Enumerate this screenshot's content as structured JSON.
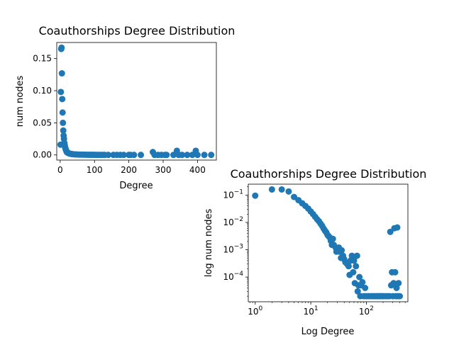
{
  "chart_data": [
    {
      "type": "scatter",
      "title": "Coauthorships Degree Distribution",
      "xlabel": "Degree",
      "ylabel": "num nodes",
      "xlim": [
        -10,
        455
      ],
      "ylim": [
        -0.008,
        0.175
      ],
      "xscale": "linear",
      "yscale": "linear",
      "xticks": [
        0,
        100,
        200,
        300,
        400
      ],
      "xtick_labels": [
        "0",
        "100",
        "200",
        "300",
        "400"
      ],
      "yticks": [
        0.0,
        0.05,
        0.1,
        0.15
      ],
      "ytick_labels": [
        "0.00",
        "0.05",
        "0.10",
        "0.15"
      ],
      "color": "#1f77b4",
      "series": [
        {
          "x": [
            1,
            2,
            3,
            4,
            5,
            6,
            7,
            8,
            9,
            10,
            11,
            12,
            13,
            14,
            15,
            16,
            17,
            18,
            19,
            20,
            22,
            24,
            26,
            28,
            30,
            33,
            36,
            40,
            45,
            50,
            55,
            60,
            65,
            70,
            75,
            80,
            85,
            90,
            95,
            100,
            105,
            110,
            115,
            120,
            125,
            130,
            140,
            155,
            165,
            175,
            185,
            200,
            205,
            215,
            235,
            270,
            275,
            285,
            295,
            305,
            310,
            330,
            340,
            345,
            355,
            370,
            385,
            395,
            400,
            420,
            440
          ],
          "y": [
            0.016,
            0.098,
            0.165,
            0.167,
            0.127,
            0.087,
            0.066,
            0.05,
            0.038,
            0.03,
            0.025,
            0.019,
            0.016,
            0.013,
            0.011,
            0.009,
            0.0075,
            0.006,
            0.005,
            0.004,
            0.0035,
            0.003,
            0.0025,
            0.002,
            0.0018,
            0.0015,
            0.0012,
            0.001,
            0.0008,
            0.0007,
            0.0006,
            0.0005,
            0.0005,
            0.0004,
            0.0004,
            0.0003,
            0.0003,
            0.0002,
            0.0002,
            0.0002,
            0.0001,
            0.0001,
            0.0001,
            0.0001,
            0.0001,
            0.0001,
            0.0001,
            0.0001,
            0.0001,
            0.0001,
            0.0001,
            0.0001,
            0.0001,
            0.0001,
            0.0001,
            0.0045,
            0.0001,
            0.0001,
            0.0001,
            0.0001,
            0.0001,
            0.0001,
            0.0065,
            0.0001,
            0.0001,
            0.0001,
            0.0001,
            0.0065,
            0.0001,
            0.0001,
            0.0001
          ]
        }
      ]
    },
    {
      "type": "scatter",
      "title": "Coauthorships Degree Distribution",
      "xlabel": "Log Degree",
      "ylabel": "log num nodes",
      "xscale": "log",
      "yscale": "log",
      "xlim": [
        0.75,
        560
      ],
      "ylim": [
        1.25e-05,
        0.25
      ],
      "xticks": [
        1,
        10,
        100
      ],
      "xtick_labels": [
        "10^0",
        "10^1",
        "10^2"
      ],
      "yticks": [
        0.0001,
        0.001,
        0.01,
        0.1
      ],
      "ytick_labels": [
        "10^-4",
        "10^-3",
        "10^-2",
        "10^-1"
      ],
      "color": "#1f77b4",
      "series": [
        {
          "x": [
            1,
            2,
            3,
            4,
            5,
            6,
            7,
            8,
            9,
            10,
            11,
            12,
            13,
            14,
            15,
            16,
            17,
            18,
            19,
            20,
            21,
            22,
            23,
            24,
            25,
            26,
            28,
            29,
            30,
            32,
            33,
            35,
            36,
            38,
            40,
            42,
            45,
            48,
            50,
            52,
            55,
            58,
            60,
            62,
            65,
            68,
            70,
            72,
            75,
            78,
            80,
            85,
            90,
            95,
            100,
            110,
            120,
            130,
            140,
            150,
            160,
            170,
            180,
            190,
            200,
            220,
            240,
            260,
            270,
            280,
            290,
            300,
            310,
            320,
            330,
            340,
            350,
            360,
            370,
            380,
            400
          ],
          "y": [
            0.095,
            0.16,
            0.16,
            0.135,
            0.085,
            0.065,
            0.05,
            0.04,
            0.032,
            0.025,
            0.02,
            0.016,
            0.013,
            0.011,
            0.009,
            0.0075,
            0.006,
            0.005,
            0.0043,
            0.0035,
            0.0031,
            0.0028,
            0.0021,
            0.0015,
            0.0025,
            0.0015,
            0.0012,
            0.00085,
            0.001,
            0.0012,
            0.00085,
            0.0005,
            0.00095,
            0.0006,
            0.00045,
            0.00035,
            0.0003,
            0.00025,
            0.00012,
            0.0004,
            0.0006,
            0.00015,
            0.0004,
            6e-05,
            0.00025,
            0.0006,
            3e-05,
            5e-05,
            0.0001,
            2e-05,
            5e-05,
            6.5e-05,
            2e-05,
            4e-05,
            2e-05,
            2e-05,
            2e-05,
            2e-05,
            2e-05,
            2e-05,
            2e-05,
            2e-05,
            2e-05,
            2e-05,
            2e-05,
            2e-05,
            2e-05,
            2e-05,
            0.0045,
            5e-05,
            0.00015,
            2e-05,
            6e-05,
            0.0061,
            0.00015,
            2e-05,
            4e-05,
            0.0065,
            2e-05,
            6e-05,
            2e-05
          ]
        }
      ]
    }
  ]
}
